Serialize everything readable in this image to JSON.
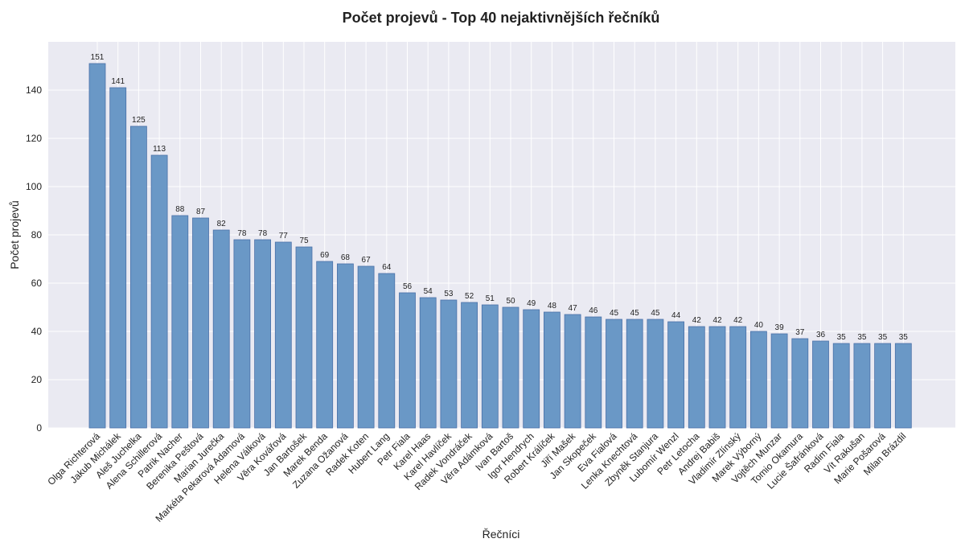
{
  "chart_data": {
    "type": "bar",
    "title": "Počet projevů - Top 40 nejaktivnějších řečníků",
    "xlabel": "Řečníci",
    "ylabel": "Počet projevů",
    "ylim": [
      0,
      160
    ],
    "yticks": [
      0,
      20,
      40,
      60,
      80,
      100,
      120,
      140
    ],
    "grid": true,
    "colors": {
      "bar": "#6a98c6",
      "bar_edge": "#4a70a8",
      "plot_bg": "#eaeaf2",
      "grid": "#ffffff"
    },
    "categories": [
      "Olga Richterová",
      "Jakub Michálek",
      "Aleš Juchelka",
      "Alena Schillerová",
      "Patrik Nacher",
      "Berenika Peštová",
      "Marian Jurečka",
      "Markéta Pekarová Adamová",
      "Helena Válková",
      "Věra Kovářová",
      "Jan Bartošek",
      "Marek Benda",
      "Zuzana Ožanová",
      "Radek Koten",
      "Hubert Lang",
      "Petr Fiala",
      "Karel Haas",
      "Karel Havlíček",
      "Radek Vondráček",
      "Věra Adámková",
      "Ivan Bartoš",
      "Igor Hendrych",
      "Robert Králíček",
      "Jiří Mašek",
      "Jan Skopeček",
      "Eva Fialová",
      "Lenka Knechtová",
      "Zbyněk Stanjura",
      "Lubomír Wenzl",
      "Petr Letocha",
      "Andrej Babiš",
      "Vladimír Zlínský",
      "Marek Výborný",
      "Vojtěch Munzar",
      "Tomio Okamura",
      "Lucie Šafránková",
      "Radim Fiala",
      "Vít Rakušan",
      "Marie Pošarová",
      "Milan Brázdil"
    ],
    "values": [
      151,
      141,
      125,
      113,
      88,
      87,
      82,
      78,
      78,
      77,
      75,
      69,
      68,
      67,
      64,
      56,
      54,
      53,
      52,
      51,
      50,
      49,
      48,
      47,
      46,
      45,
      45,
      45,
      44,
      42,
      42,
      42,
      40,
      39,
      37,
      36,
      35,
      35,
      35,
      35
    ]
  }
}
